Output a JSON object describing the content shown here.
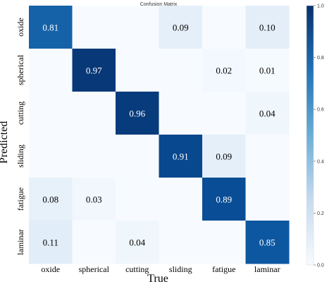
{
  "chart_data": {
    "type": "heatmap",
    "title": "Confusion Matrix",
    "xlabel": "True",
    "ylabel": "Predicted",
    "x_categories": [
      "oxide",
      "spherical",
      "cutting",
      "sliding",
      "fatigue",
      "laminar"
    ],
    "y_categories": [
      "oxide",
      "spherical",
      "cutting",
      "sliding",
      "fatigue",
      "laminar"
    ],
    "matrix": [
      [
        0.81,
        0.0,
        0.0,
        0.09,
        0.0,
        0.1
      ],
      [
        0.0,
        0.97,
        0.0,
        0.0,
        0.02,
        0.01
      ],
      [
        0.0,
        0.0,
        0.96,
        0.0,
        0.0,
        0.04
      ],
      [
        0.0,
        0.0,
        0.0,
        0.91,
        0.09,
        0.0
      ],
      [
        0.08,
        0.03,
        0.0,
        0.0,
        0.89,
        0.0
      ],
      [
        0.11,
        0.0,
        0.04,
        0.0,
        0.0,
        0.85
      ]
    ],
    "cell_labels": [
      [
        "0.81",
        "",
        "",
        "0.09",
        "",
        "0.10"
      ],
      [
        "",
        "0.97",
        "",
        "",
        "0.02",
        "0.01"
      ],
      [
        "",
        "",
        "0.96",
        "",
        "",
        "0.04"
      ],
      [
        "",
        "",
        "",
        "0.91",
        "0.09",
        ""
      ],
      [
        "0.08",
        "0.03",
        "",
        "",
        "0.89",
        ""
      ],
      [
        "0.11",
        "",
        "0.04",
        "",
        "",
        "0.85"
      ]
    ],
    "colorbar": {
      "range": [
        0.0,
        1.0
      ],
      "ticks": [
        "0.0",
        "0.2",
        "0.4",
        "0.6",
        "0.8",
        "1.0"
      ]
    },
    "colormap": "Blues",
    "colors": {
      "low": "#f7fbff",
      "mid": "#6baed6",
      "high": "#08306b",
      "text_dark": "#000000",
      "text_light": "#ffffff"
    }
  }
}
